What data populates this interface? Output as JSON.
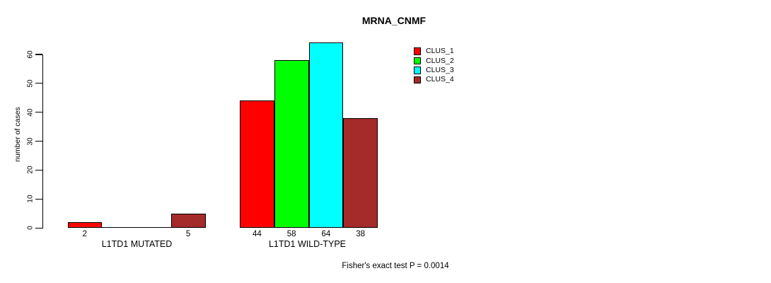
{
  "chart_data": {
    "type": "bar",
    "title": "MRNA_CNMF",
    "ylabel": "number of cases",
    "xlabel": "",
    "yticks": [
      0,
      10,
      20,
      30,
      40,
      50,
      60
    ],
    "ylim": [
      0,
      64
    ],
    "grid": false,
    "legend_position": "top-right",
    "value_labels": "shown under each nonzero bar",
    "categories": [
      "L1TD1 MUTATED",
      "L1TD1 WILD-TYPE"
    ],
    "series": [
      {
        "name": "CLUS_1",
        "color": "#FF0000",
        "values": [
          2,
          44
        ]
      },
      {
        "name": "CLUS_2",
        "color": "#00FF00",
        "values": [
          0,
          58
        ]
      },
      {
        "name": "CLUS_3",
        "color": "#00FFFF",
        "values": [
          0,
          64
        ]
      },
      {
        "name": "CLUS_4",
        "color": "#A52A2A",
        "values": [
          5,
          38
        ]
      }
    ],
    "annotation": "Fisher's exact test P = 0.0014",
    "colors": {
      "axis": "#000000",
      "background": "#FFFFFF",
      "text": "#000000"
    }
  }
}
